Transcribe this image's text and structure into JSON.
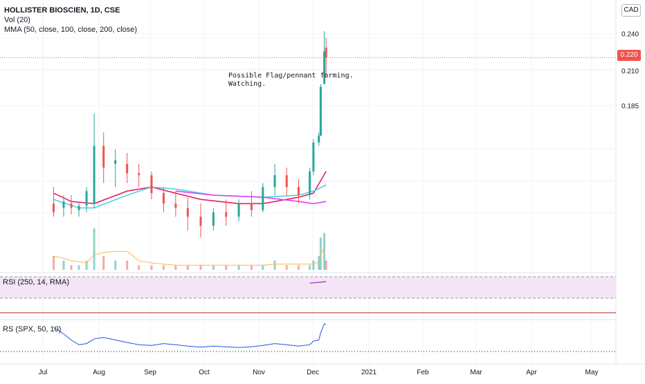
{
  "header": {
    "title": "HOLLISTER BIOSCIEN, 1D, CSE",
    "vol_label": "Vol (20)",
    "mma_label": "MMA (50, close, 100, close, 200, close)",
    "currency": "CAD"
  },
  "annotation": {
    "line1": "Possible Flag/pennant forming.",
    "line2": "Watching."
  },
  "last_price": "0.220",
  "rsi_label": "RSI (250, 14, RMA)",
  "rs_label": "RS (SPX, 50, 10)",
  "colors": {
    "up": "#26a69a",
    "down": "#ef5350",
    "ma50": "#e91e63",
    "ma100": "#4dd0e1",
    "ma200": "#e040fb",
    "rs_line": "#1e53e5",
    "rsi_line": "#9c27b0",
    "rsi_band": "#f3e5f5"
  },
  "chart_data": [
    {
      "type": "candlestick",
      "title": "HOLLISTER BIOSCIEN, 1D, CSE",
      "y_ticks": [
        "0.240",
        "0.210",
        "0.185"
      ],
      "x_ticks": [
        "Jul",
        "Aug",
        "Sep",
        "Oct",
        "Nov",
        "Dec",
        "2021",
        "Feb",
        "Mar",
        "Apr",
        "May"
      ],
      "candles": [
        {
          "d": "Jun 23",
          "o": 0.13,
          "h": 0.138,
          "l": 0.124,
          "c": 0.126
        },
        {
          "d": "Jul 1",
          "o": 0.128,
          "h": 0.134,
          "l": 0.124,
          "c": 0.131
        },
        {
          "d": "Jul 8",
          "o": 0.13,
          "h": 0.134,
          "l": 0.125,
          "c": 0.128
        },
        {
          "d": "Jul 15",
          "o": 0.127,
          "h": 0.131,
          "l": 0.124,
          "c": 0.129
        },
        {
          "d": "Jul 22",
          "o": 0.129,
          "h": 0.138,
          "l": 0.126,
          "c": 0.136
        },
        {
          "d": "Jul 29",
          "o": 0.13,
          "h": 0.18,
          "l": 0.128,
          "c": 0.16
        },
        {
          "d": "Aug 5",
          "o": 0.16,
          "h": 0.168,
          "l": 0.14,
          "c": 0.148
        },
        {
          "d": "Aug 12",
          "o": 0.15,
          "h": 0.158,
          "l": 0.138,
          "c": 0.152
        },
        {
          "d": "Aug 19",
          "o": 0.15,
          "h": 0.156,
          "l": 0.14,
          "c": 0.145
        },
        {
          "d": "Aug 26",
          "o": 0.145,
          "h": 0.15,
          "l": 0.138,
          "c": 0.144
        },
        {
          "d": "Sep 3",
          "o": 0.144,
          "h": 0.146,
          "l": 0.132,
          "c": 0.135
        },
        {
          "d": "Sep 10",
          "o": 0.135,
          "h": 0.138,
          "l": 0.126,
          "c": 0.13
        },
        {
          "d": "Sep 17",
          "o": 0.13,
          "h": 0.136,
          "l": 0.124,
          "c": 0.128
        },
        {
          "d": "Sep 24",
          "o": 0.128,
          "h": 0.133,
          "l": 0.118,
          "c": 0.124
        },
        {
          "d": "Oct 1",
          "o": 0.124,
          "h": 0.13,
          "l": 0.115,
          "c": 0.12
        },
        {
          "d": "Oct 8",
          "o": 0.12,
          "h": 0.128,
          "l": 0.118,
          "c": 0.126
        },
        {
          "d": "Oct 15",
          "o": 0.126,
          "h": 0.132,
          "l": 0.12,
          "c": 0.124
        },
        {
          "d": "Oct 22",
          "o": 0.124,
          "h": 0.132,
          "l": 0.122,
          "c": 0.13
        },
        {
          "d": "Oct 29",
          "o": 0.13,
          "h": 0.136,
          "l": 0.124,
          "c": 0.127
        },
        {
          "d": "Nov 5",
          "o": 0.127,
          "h": 0.14,
          "l": 0.126,
          "c": 0.138
        },
        {
          "d": "Nov 12",
          "o": 0.138,
          "h": 0.15,
          "l": 0.134,
          "c": 0.144
        },
        {
          "d": "Nov 19",
          "o": 0.144,
          "h": 0.148,
          "l": 0.134,
          "c": 0.138
        },
        {
          "d": "Nov 26",
          "o": 0.138,
          "h": 0.142,
          "l": 0.13,
          "c": 0.134
        },
        {
          "d": "Dec 2",
          "o": 0.134,
          "h": 0.148,
          "l": 0.132,
          "c": 0.146
        },
        {
          "d": "Dec 4",
          "o": 0.146,
          "h": 0.164,
          "l": 0.144,
          "c": 0.162
        },
        {
          "d": "Dec 7",
          "o": 0.162,
          "h": 0.168,
          "l": 0.16,
          "c": 0.166
        },
        {
          "d": "Dec 8",
          "o": 0.166,
          "h": 0.2,
          "l": 0.166,
          "c": 0.198
        },
        {
          "d": "Dec 10",
          "o": 0.2,
          "h": 0.242,
          "l": 0.2,
          "c": 0.225
        },
        {
          "d": "Dec 11",
          "o": 0.228,
          "h": 0.236,
          "l": 0.205,
          "c": 0.22
        }
      ],
      "ma_series": [
        {
          "name": "MA 50",
          "points": [
            [
              "Jun 23",
              0.135
            ],
            [
              "Jul 8",
              0.131
            ],
            [
              "Jul 29",
              0.13
            ],
            [
              "Aug 19",
              0.136
            ],
            [
              "Sep 3",
              0.138
            ],
            [
              "Sep 17",
              0.135
            ],
            [
              "Oct 1",
              0.132
            ],
            [
              "Oct 22",
              0.13
            ],
            [
              "Nov 5",
              0.13
            ],
            [
              "Nov 26",
              0.133
            ],
            [
              "Dec 4",
              0.135
            ],
            [
              "Dec 11",
              0.146
            ]
          ]
        },
        {
          "name": "MA 100",
          "points": [
            [
              "Jun 23",
              0.132
            ],
            [
              "Jul 15",
              0.128
            ],
            [
              "Jul 29",
              0.128
            ],
            [
              "Aug 19",
              0.134
            ],
            [
              "Sep 3",
              0.138
            ],
            [
              "Sep 17",
              0.137
            ],
            [
              "Oct 8",
              0.134
            ],
            [
              "Nov 5",
              0.133
            ],
            [
              "Nov 26",
              0.134
            ],
            [
              "Dec 4",
              0.136
            ],
            [
              "Dec 11",
              0.139
            ]
          ]
        },
        {
          "name": "MA 200",
          "points": [
            [
              "Sep 17",
              0.136
            ],
            [
              "Oct 8",
              0.134
            ],
            [
              "Nov 5",
              0.133
            ],
            [
              "Nov 26",
              0.131
            ],
            [
              "Dec 4",
              0.13
            ],
            [
              "Dec 11",
              0.131
            ]
          ]
        }
      ],
      "last_price": 0.22
    },
    {
      "type": "bar",
      "title": "Vol (20)",
      "categories": [
        "Jun 23",
        "Jul 1",
        "Jul 8",
        "Jul 15",
        "Jul 22",
        "Jul 29",
        "Aug 5",
        "Aug 12",
        "Aug 19",
        "Aug 26",
        "Sep 3",
        "Sep 10",
        "Sep 17",
        "Sep 24",
        "Oct 1",
        "Oct 8",
        "Oct 15",
        "Oct 22",
        "Oct 29",
        "Nov 5",
        "Nov 12",
        "Nov 19",
        "Nov 26",
        "Dec 2",
        "Dec 4",
        "Dec 7",
        "Dec 8",
        "Dec 10",
        "Dec 11"
      ],
      "values": [
        3,
        2,
        1,
        1,
        2,
        9,
        3,
        2,
        2,
        1,
        1,
        1,
        1,
        1,
        1,
        1,
        1,
        1,
        1,
        1,
        2,
        1,
        1,
        1,
        2,
        3,
        7,
        8,
        2
      ]
    },
    {
      "type": "line",
      "title": "RSI (250, 14, RMA)",
      "points": [
        [
          "Dec 2",
          58
        ],
        [
          "Dec 11",
          61
        ]
      ]
    },
    {
      "type": "line",
      "title": "RS (SPX, 50, 10)",
      "points": [
        [
          "Jun 23",
          0.9
        ],
        [
          "Jul 1",
          0.72
        ],
        [
          "Jul 8",
          0.55
        ],
        [
          "Jul 15",
          0.42
        ],
        [
          "Jul 22",
          0.45
        ],
        [
          "Jul 29",
          0.58
        ],
        [
          "Aug 5",
          0.62
        ],
        [
          "Aug 12",
          0.55
        ],
        [
          "Aug 19",
          0.48
        ],
        [
          "Aug 26",
          0.42
        ],
        [
          "Sep 3",
          0.4
        ],
        [
          "Sep 10",
          0.45
        ],
        [
          "Sep 17",
          0.42
        ],
        [
          "Sep 24",
          0.38
        ],
        [
          "Oct 1",
          0.35
        ],
        [
          "Oct 8",
          0.38
        ],
        [
          "Oct 15",
          0.36
        ],
        [
          "Oct 22",
          0.34
        ],
        [
          "Oct 29",
          0.36
        ],
        [
          "Nov 5",
          0.4
        ],
        [
          "Nov 12",
          0.45
        ],
        [
          "Nov 19",
          0.42
        ],
        [
          "Nov 26",
          0.38
        ],
        [
          "Dec 2",
          0.42
        ],
        [
          "Dec 4",
          0.52
        ],
        [
          "Dec 7",
          0.55
        ],
        [
          "Dec 8",
          0.75
        ],
        [
          "Dec 10",
          1.0
        ],
        [
          "Dec 11",
          0.98
        ]
      ]
    }
  ]
}
